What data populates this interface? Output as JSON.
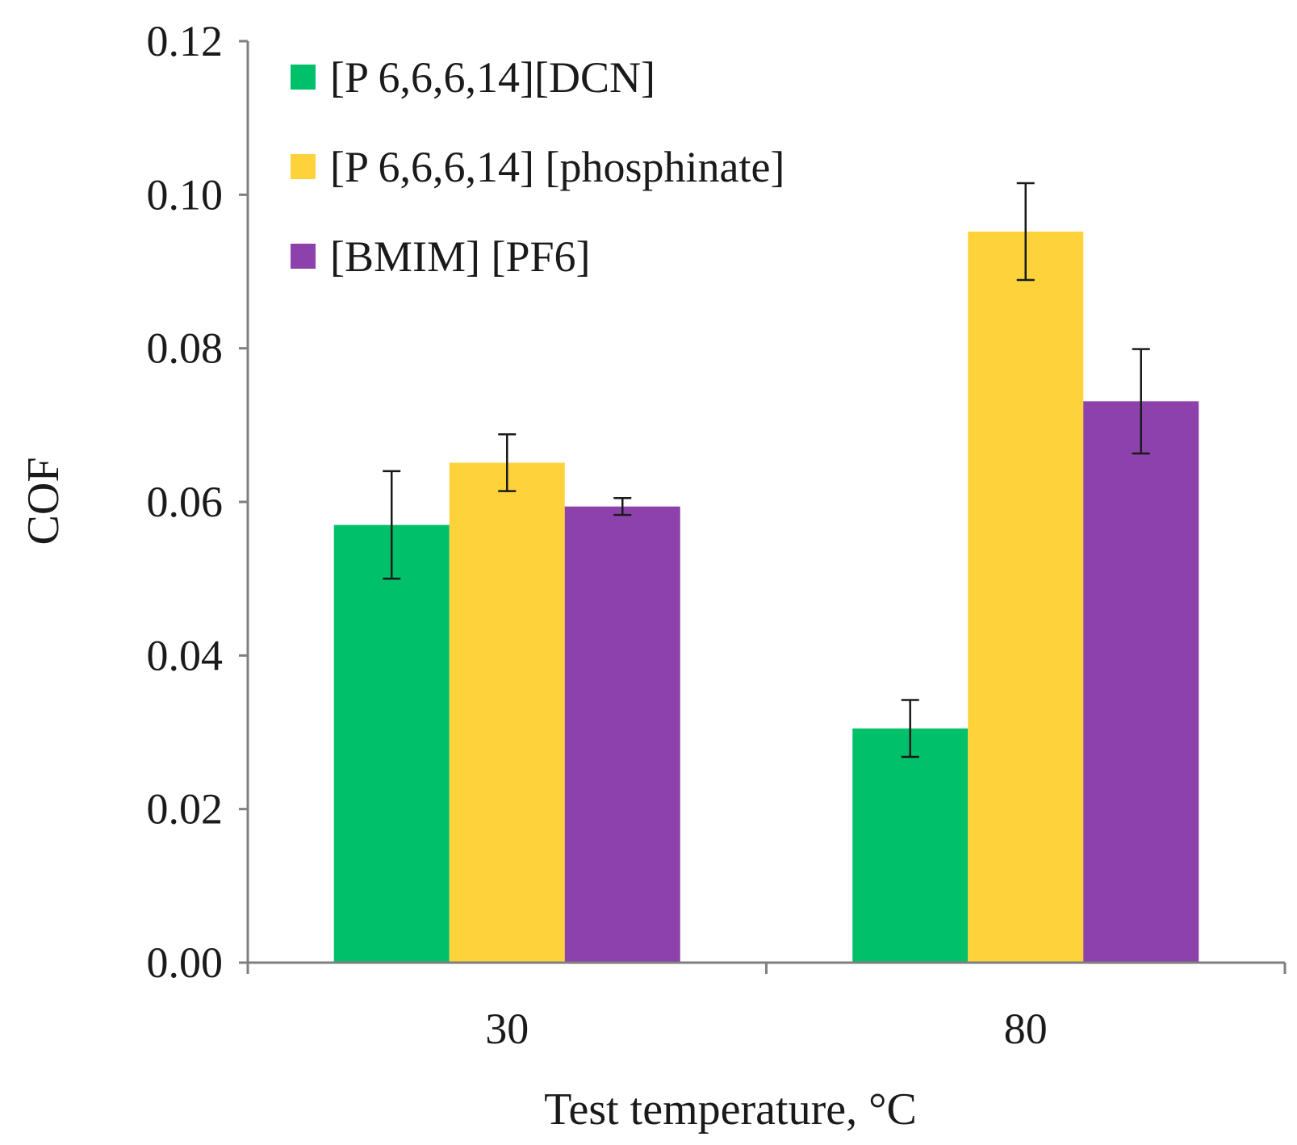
{
  "chart_data": {
    "type": "bar",
    "title": "",
    "xlabel": "Test temperature, °C",
    "ylabel": "COF",
    "categories": [
      "30",
      "80"
    ],
    "ylim": [
      0,
      0.12
    ],
    "yticks": [
      "0.00",
      "0.02",
      "0.04",
      "0.06",
      "0.08",
      "0.10",
      "0.12"
    ],
    "ytick_values": [
      0,
      0.02,
      0.04,
      0.06,
      0.08,
      0.1,
      0.12
    ],
    "grid": false,
    "legend_position": "top-left",
    "series": [
      {
        "name": "[P 6,6,6,14][DCN]",
        "color": "#00c06a",
        "values": [
          0.057,
          0.0305
        ],
        "errors": [
          0.007,
          0.0037
        ]
      },
      {
        "name": "[P 6,6,6,14] [phosphinate]",
        "color": "#fdd23a",
        "values": [
          0.0651,
          0.0952
        ],
        "errors": [
          0.0037,
          0.0063
        ]
      },
      {
        "name": "[BMIM] [PF6]",
        "color": "#8d41ab",
        "values": [
          0.0594,
          0.0731
        ],
        "errors": [
          0.0011,
          0.0068
        ]
      }
    ]
  }
}
